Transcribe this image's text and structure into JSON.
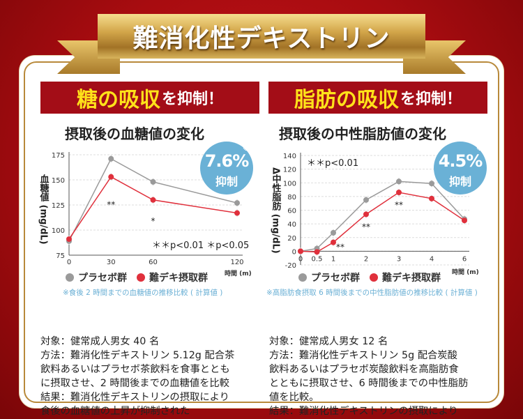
{
  "banner": {
    "title": "難消化性デキストリン"
  },
  "left": {
    "header_em": "糖の吸収",
    "header_rest": "を抑制！",
    "subtitle": "摂取後の血糖値の変化",
    "badge": {
      "percent": "7.6%",
      "mark": "※",
      "label": "抑制"
    },
    "legend": [
      "プラセボ群",
      "難デキ摂取群"
    ],
    "footnote": "※食後 2 時間までの血糖値の推移比較 ( 計算値 )",
    "body": [
      "対象：健常成人男女 40 名",
      "方法：難消化性デキストリン 5.12g 配合茶",
      "飲料あるいはプラセボ茶飲料を食事ととも",
      "に摂取させ、2 時間後までの血糖値を比較",
      "結果：難消化性デキストリンの摂取により",
      "食後の血糖値の上昇が抑制された"
    ]
  },
  "right": {
    "header_em": "脂肪の吸収",
    "header_rest": "を抑制！",
    "subtitle": "摂取後の中性脂肪値の変化",
    "badge": {
      "percent": "4.5%",
      "mark": "※",
      "label": "抑制"
    },
    "legend": [
      "プラセボ群",
      "難デキ摂取群"
    ],
    "footnote": "※高脂肪食摂取 6 時間後までの中性脂肪値の推移比較 ( 計算値 )",
    "body": [
      "対象：健常成人男女 12 名",
      "方法：難消化性デキストリン 5g 配合炭酸",
      "飲料あるいはプラセボ炭酸飲料を高脂肪食",
      "とともに摂取させ、6 時間後までの中性脂肪",
      "値を比較。",
      "結果：難消化性デキストリンの摂取により"
    ]
  },
  "colors": {
    "placebo": "#9a9a9a",
    "treatment": "#e0303c",
    "badge": "#6ab1d6",
    "header": "#a30d17",
    "accent_text": "#ffe21a"
  },
  "chart_data": [
    {
      "type": "line",
      "ylabel": "血糖値 (mg/dL)",
      "xlabel": "時間 (m)",
      "x": [
        0,
        30,
        60,
        120
      ],
      "xticks": [
        "0",
        "30",
        "60",
        "120"
      ],
      "yticks": [
        75,
        100,
        125,
        150,
        175
      ],
      "ylim": [
        75,
        175
      ],
      "grid": true,
      "series": [
        {
          "name": "プラセボ群",
          "values": [
            89,
            171,
            148,
            127
          ]
        },
        {
          "name": "難デキ摂取群",
          "values": [
            91,
            153,
            130,
            117
          ]
        }
      ],
      "annotations": [
        {
          "x": 30,
          "text": "**"
        },
        {
          "x": 60,
          "text": "*"
        }
      ],
      "significance": "＊＊p<0.01 ＊p<0.05"
    },
    {
      "type": "line",
      "ylabel": "Δ中性脂肪 (mg/dL)",
      "xlabel": "時間 (m)",
      "x": [
        0,
        0.5,
        1,
        2,
        3,
        4,
        6
      ],
      "xticks": [
        "0",
        "0.5",
        "1",
        "2",
        "3",
        "4",
        "6"
      ],
      "yticks": [
        -20,
        0,
        20,
        40,
        60,
        80,
        100,
        120,
        140
      ],
      "ylim": [
        -20,
        140
      ],
      "grid": true,
      "series": [
        {
          "name": "プラセボ群",
          "values": [
            0,
            4,
            27,
            75,
            102,
            99,
            47
          ]
        },
        {
          "name": "難デキ摂取群",
          "values": [
            0,
            -1,
            13,
            54,
            86,
            77,
            45
          ]
        }
      ],
      "annotations": [
        {
          "x": 1,
          "text": "**"
        },
        {
          "x": 2,
          "text": "**"
        },
        {
          "x": 3,
          "text": "**"
        }
      ],
      "significance": "＊＊p<0.01"
    }
  ]
}
